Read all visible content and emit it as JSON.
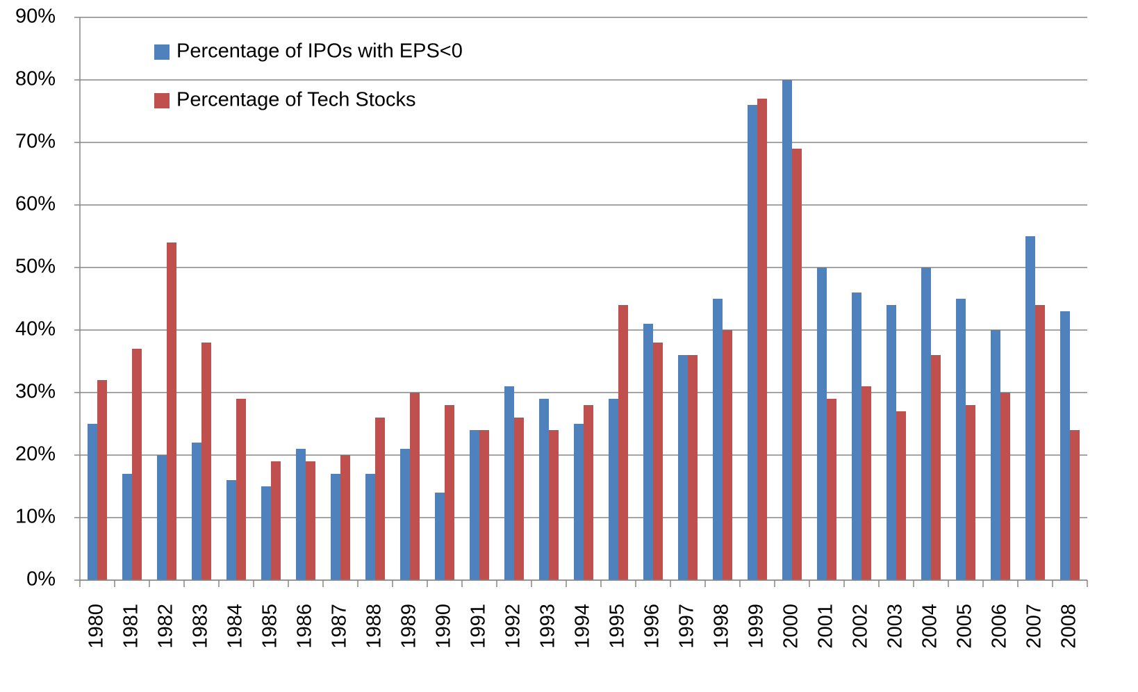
{
  "chart_data": {
    "type": "bar",
    "categories": [
      "1980",
      "1981",
      "1982",
      "1983",
      "1984",
      "1985",
      "1986",
      "1987",
      "1988",
      "1989",
      "1990",
      "1991",
      "1992",
      "1993",
      "1994",
      "1995",
      "1996",
      "1997",
      "1998",
      "1999",
      "2000",
      "2001",
      "2002",
      "2003",
      "2004",
      "2005",
      "2006",
      "2007",
      "2008"
    ],
    "series": [
      {
        "name": "Percentage of IPOs with EPS<0",
        "color": "#4f81bd",
        "values": [
          25,
          17,
          20,
          22,
          16,
          15,
          21,
          17,
          17,
          21,
          14,
          24,
          31,
          29,
          25,
          29,
          41,
          36,
          45,
          76,
          80,
          50,
          46,
          44,
          50,
          45,
          40,
          55,
          43
        ]
      },
      {
        "name": "Percentage of Tech Stocks",
        "color": "#c0504d",
        "values": [
          32,
          37,
          54,
          38,
          29,
          19,
          19,
          20,
          26,
          30,
          28,
          24,
          26,
          24,
          28,
          44,
          38,
          36,
          40,
          77,
          69,
          29,
          31,
          27,
          36,
          28,
          30,
          44,
          24
        ]
      }
    ],
    "ylim": [
      0,
      90
    ],
    "yticks": [
      {
        "value": 0,
        "label": "0%"
      },
      {
        "value": 10,
        "label": "10%"
      },
      {
        "value": 20,
        "label": "20%"
      },
      {
        "value": 30,
        "label": "30%"
      },
      {
        "value": 40,
        "label": "40%"
      },
      {
        "value": 50,
        "label": "50%"
      },
      {
        "value": 60,
        "label": "60%"
      },
      {
        "value": 70,
        "label": "70%"
      },
      {
        "value": 80,
        "label": "80%"
      },
      {
        "value": 90,
        "label": "90%"
      }
    ],
    "grid": true,
    "legend": "top-left"
  }
}
